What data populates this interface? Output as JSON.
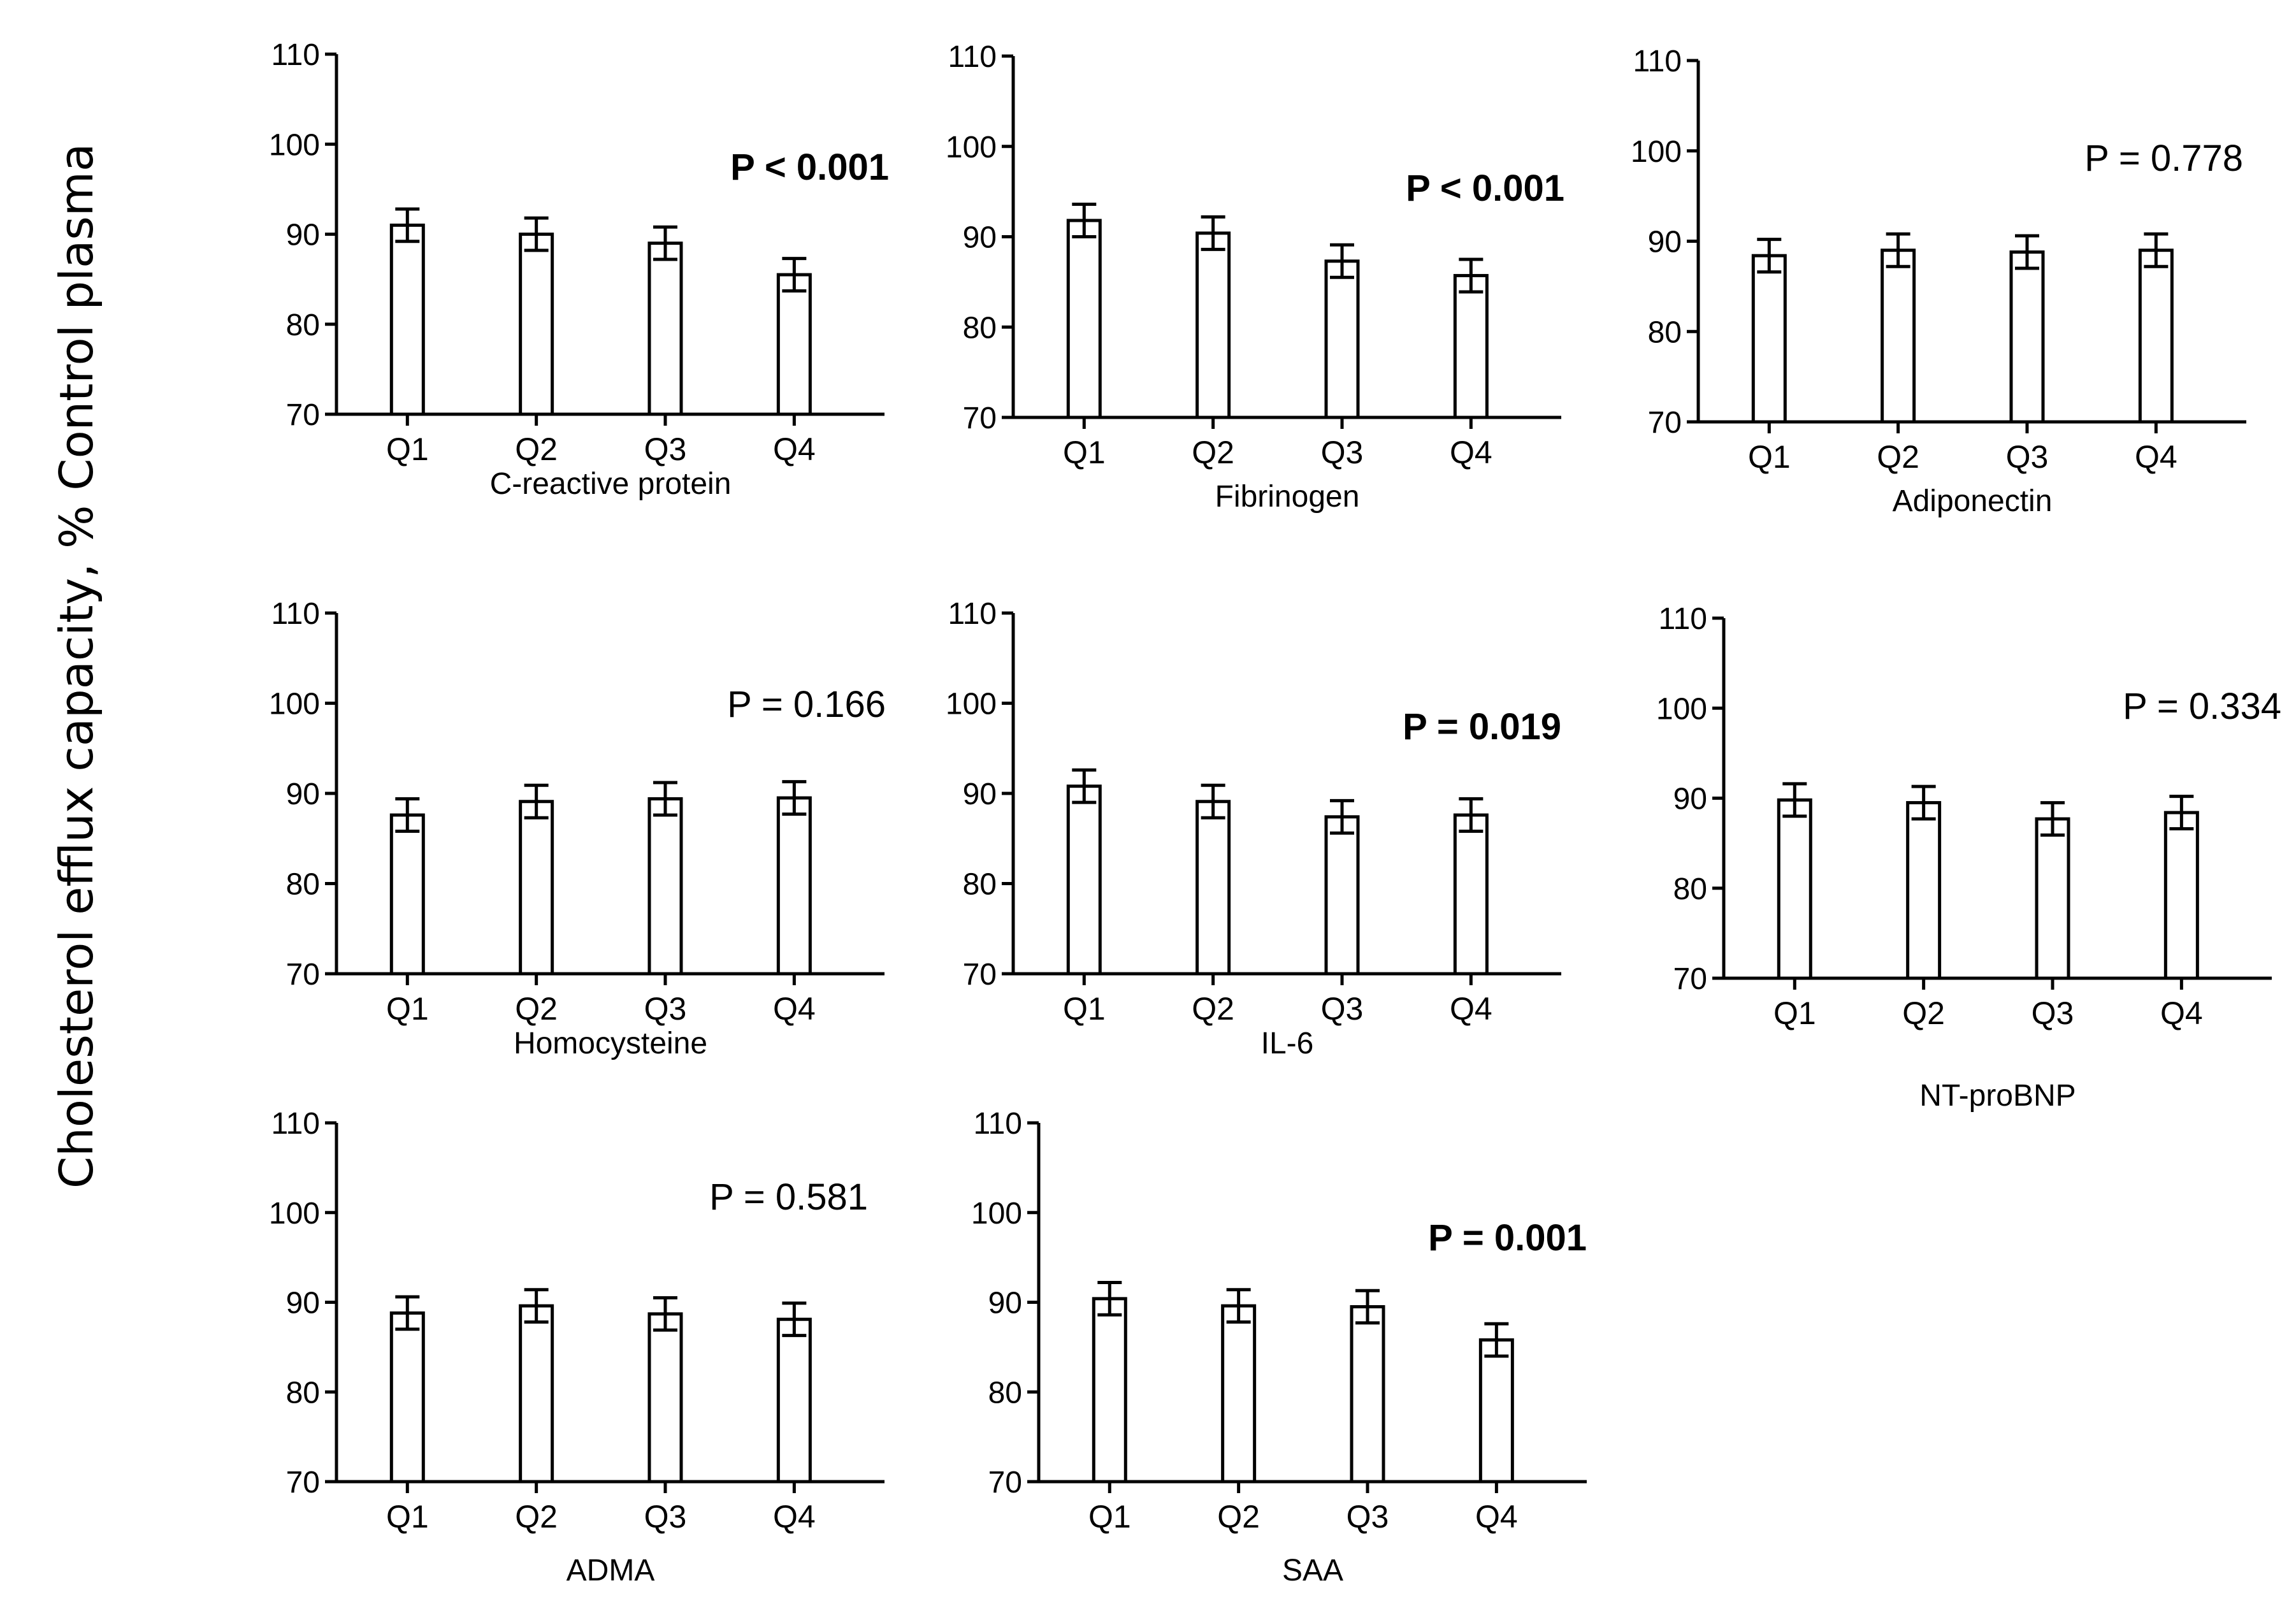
{
  "figure": {
    "ylabel": "Cholesterol efflux capacity, % Control plasma"
  },
  "chart_data": [
    {
      "type": "bar",
      "xlabel": "C-reactive protein",
      "categories": [
        "Q1",
        "Q2",
        "Q3",
        "Q4"
      ],
      "values": [
        91,
        90,
        89,
        85.5
      ],
      "errors": [
        1.8,
        1.8,
        1.8,
        1.8
      ],
      "ylim": [
        70,
        110
      ],
      "yticks": [
        70,
        80,
        90,
        100,
        110
      ],
      "ytick_labels": [
        "70",
        "80",
        "90",
        "100",
        "110"
      ],
      "annotation": "P < 0.001",
      "annotation_bold": true
    },
    {
      "type": "bar",
      "xlabel": "Fibrinogen",
      "categories": [
        "Q1",
        "Q2",
        "Q3",
        "Q4"
      ],
      "values": [
        91.8,
        90.4,
        87.3,
        85.7
      ],
      "errors": [
        1.8,
        1.8,
        1.8,
        1.8
      ],
      "ylim": [
        70,
        110
      ],
      "yticks": [
        70,
        80,
        90,
        100,
        110
      ],
      "ytick_labels": [
        "70",
        "80",
        "90",
        "100",
        "110"
      ],
      "annotation": "P < 0.001",
      "annotation_bold": true
    },
    {
      "type": "bar",
      "xlabel": "Adiponectin",
      "categories": [
        "Q1",
        "Q2",
        "Q3",
        "Q4"
      ],
      "values": [
        88.4,
        89,
        88.8,
        89
      ],
      "errors": [
        1.8,
        1.8,
        1.8,
        1.8
      ],
      "ylim": [
        70,
        110
      ],
      "yticks": [
        70,
        80,
        90,
        100,
        110
      ],
      "ytick_labels": [
        "70",
        "80",
        "90",
        "100",
        "110"
      ],
      "annotation": "P = 0.778",
      "annotation_bold": false
    },
    {
      "type": "bar",
      "xlabel": "Homocysteine",
      "categories": [
        "Q1",
        "Q2",
        "Q3",
        "Q4"
      ],
      "values": [
        87.6,
        89.1,
        89.4,
        89.5
      ],
      "errors": [
        1.8,
        1.8,
        1.8,
        1.8
      ],
      "ylim": [
        70,
        110
      ],
      "yticks": [
        70,
        80,
        90,
        100,
        110
      ],
      "ytick_labels": [
        "70",
        "80",
        "90",
        "100",
        "110"
      ],
      "annotation": "P = 0.166",
      "annotation_bold": false
    },
    {
      "type": "bar",
      "xlabel": "IL-6",
      "categories": [
        "Q1",
        "Q2",
        "Q3",
        "Q4"
      ],
      "values": [
        90.8,
        89.1,
        87.4,
        87.6
      ],
      "errors": [
        1.8,
        1.8,
        1.8,
        1.8
      ],
      "ylim": [
        70,
        110
      ],
      "yticks": [
        70,
        80,
        90,
        100,
        110
      ],
      "ytick_labels": [
        "70",
        "80",
        "90",
        "100",
        "110"
      ],
      "annotation": "P = 0.019",
      "annotation_bold": true
    },
    {
      "type": "bar",
      "xlabel": "NT-proBNP",
      "categories": [
        "Q1",
        "Q2",
        "Q3",
        "Q4"
      ],
      "values": [
        89.8,
        89.5,
        87.7,
        88.4
      ],
      "errors": [
        1.8,
        1.8,
        1.8,
        1.8
      ],
      "ylim": [
        70,
        110
      ],
      "yticks": [
        70,
        80,
        90,
        100,
        110
      ],
      "ytick_labels": [
        "70",
        "80",
        "90",
        "100",
        "110"
      ],
      "annotation": "P = 0.334",
      "annotation_bold": false
    },
    {
      "type": "bar",
      "xlabel": "ADMA",
      "categories": [
        "Q1",
        "Q2",
        "Q3",
        "Q4"
      ],
      "values": [
        88.8,
        89.6,
        88.7,
        88.1
      ],
      "errors": [
        1.8,
        1.8,
        1.8,
        1.8
      ],
      "ylim": [
        70,
        110
      ],
      "yticks": [
        70,
        80,
        90,
        100,
        110
      ],
      "ytick_labels": [
        "70",
        "80",
        "90",
        "100",
        "110"
      ],
      "annotation": "P = 0.581",
      "annotation_bold": false
    },
    {
      "type": "bar",
      "xlabel": "SAA",
      "categories": [
        "Q1",
        "Q2",
        "Q3",
        "Q4"
      ],
      "values": [
        90.4,
        89.6,
        89.5,
        85.8
      ],
      "errors": [
        1.8,
        1.8,
        1.8,
        1.8
      ],
      "ylim": [
        70,
        110
      ],
      "yticks": [
        70,
        80,
        90,
        100,
        110
      ],
      "ytick_labels": [
        "70",
        "80",
        "90",
        "100",
        "110"
      ],
      "annotation": "P = 0.001",
      "annotation_bold": true
    }
  ]
}
